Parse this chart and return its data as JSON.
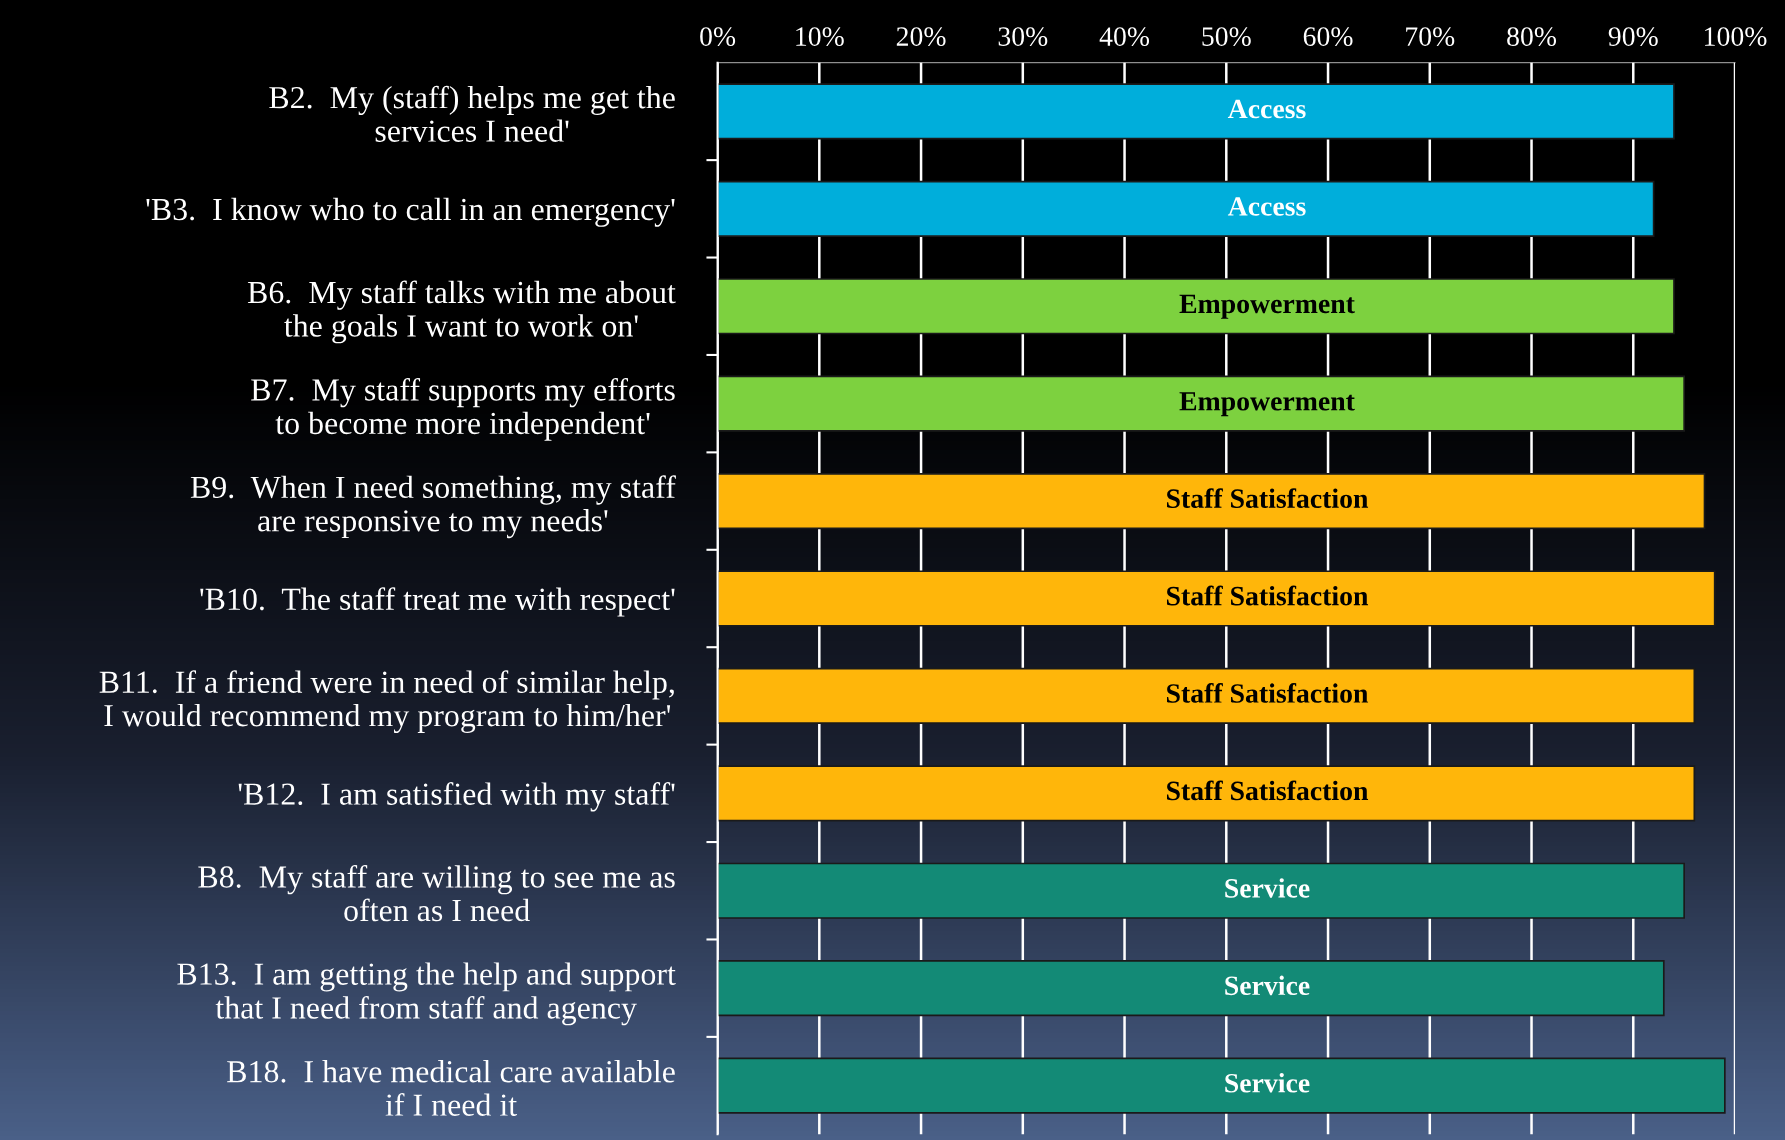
{
  "chart_data": {
    "type": "bar",
    "orientation": "horizontal",
    "stacked": true,
    "categories": [
      "B2.  My (staff) helps me get the\nservices I need'",
      "'B3.  I know who to call in an emergency'",
      "B6.  My staff talks with me about\nthe goals I want to work on'",
      "B7.  My staff supports my efforts\nto become more independent'",
      "B9.  When I need something, my staff\nare responsive to my needs'",
      "'B10.  The staff treat me with respect'",
      "B11.  If a friend were in need of similar help,\nI would recommend my program to him/her'",
      "'B12.  I am satisfied with my staff'",
      "B8.  My staff are willing to see me as\noften as I need",
      "B13.  I am getting the help and support\nthat I need from staff and agency",
      "B18.  I have medical care available\nif I need it"
    ],
    "series": [
      {
        "name": "Access",
        "color": "#00aedb",
        "values": [
          94,
          92,
          null,
          null,
          null,
          null,
          null,
          null,
          null,
          null,
          null
        ]
      },
      {
        "name": "Empowerment",
        "color": "#7dd13f",
        "values": [
          null,
          null,
          94,
          95,
          null,
          null,
          null,
          null,
          null,
          null,
          null
        ]
      },
      {
        "name": "Staff Satisfaction",
        "color": "#ffb60a",
        "values": [
          null,
          null,
          null,
          null,
          97,
          98,
          96,
          96,
          null,
          null,
          null
        ]
      },
      {
        "name": "Service",
        "color": "#138a76",
        "values": [
          null,
          null,
          null,
          null,
          null,
          null,
          null,
          null,
          95,
          93,
          99
        ]
      }
    ],
    "xlim": [
      0,
      100
    ],
    "xticks": [
      {
        "value": 0,
        "label": "0%"
      },
      {
        "value": 10,
        "label": "10%"
      },
      {
        "value": 20,
        "label": "20%"
      },
      {
        "value": 30,
        "label": "30%"
      },
      {
        "value": 40,
        "label": "40%"
      },
      {
        "value": 50,
        "label": "50%"
      },
      {
        "value": 60,
        "label": "60%"
      },
      {
        "value": 70,
        "label": "70%"
      },
      {
        "value": 80,
        "label": "80%"
      },
      {
        "value": 90,
        "label": "90%"
      },
      {
        "value": 100,
        "label": "100%"
      }
    ],
    "grid": "x",
    "legend": false
  }
}
